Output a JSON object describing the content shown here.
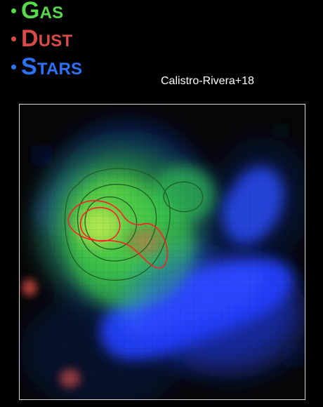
{
  "legend": {
    "items": [
      {
        "bullet": "•",
        "label": "Gas",
        "color": "#56d94a"
      },
      {
        "bullet": "•",
        "label": "Dust",
        "color": "#d84a48"
      },
      {
        "bullet": "•",
        "label": "Stars",
        "color": "#2b72ff"
      }
    ]
  },
  "citation": "Calistro-Rivera+18",
  "image": {
    "semantic": "astronomical-multiwavelength-composite",
    "colors": {
      "gas": "#56d94a",
      "dust": "#d84a48",
      "stars": "#2b72ff",
      "background": "#000000",
      "border": "#d8d8d8"
    }
  }
}
